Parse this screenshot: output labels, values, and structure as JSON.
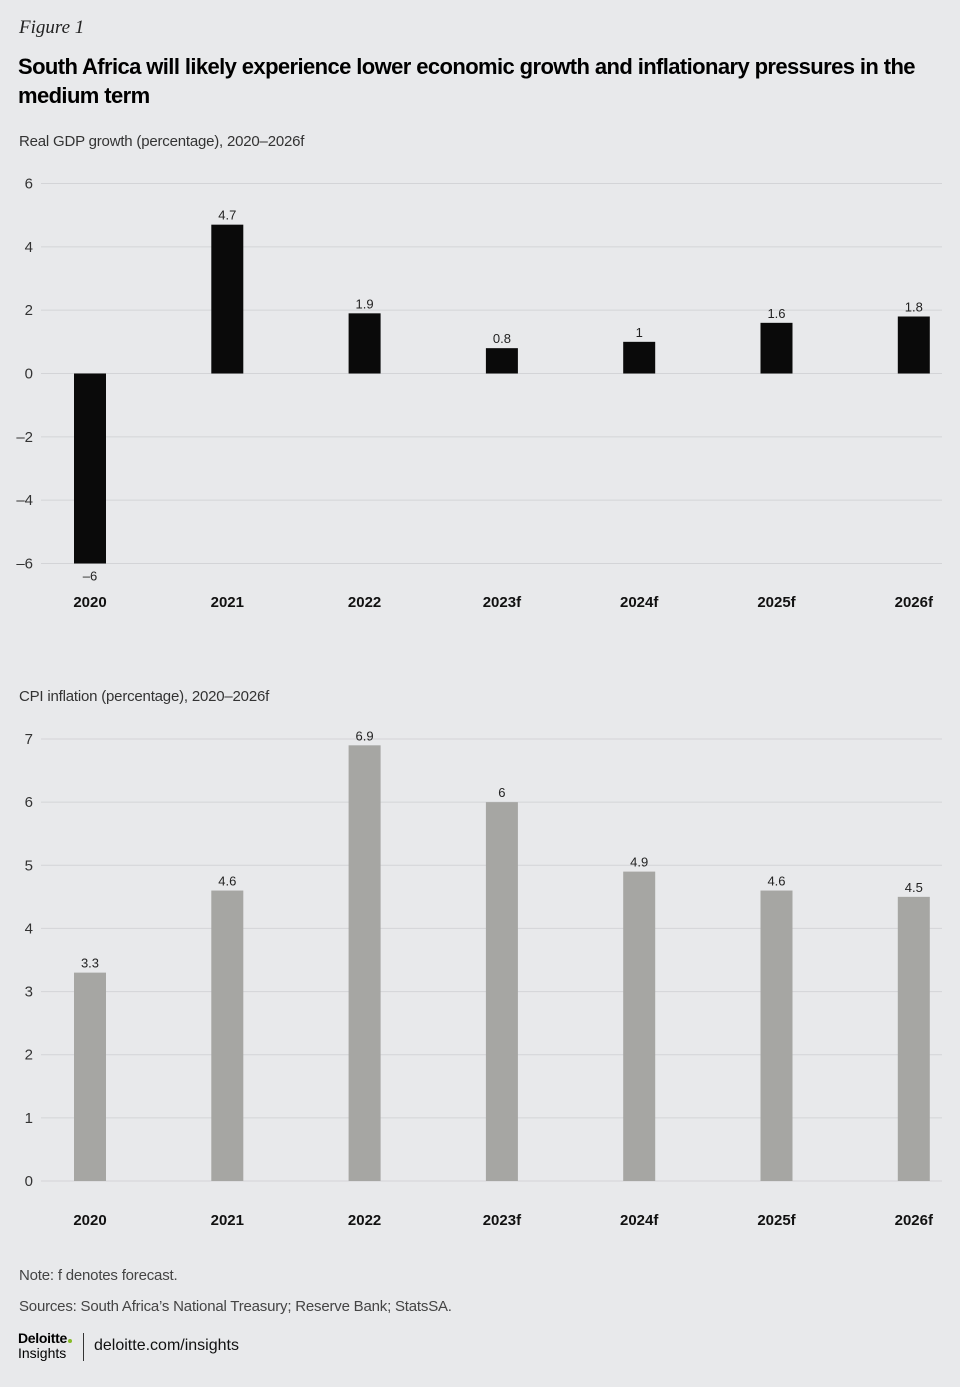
{
  "figure_label": "Figure 1",
  "title": "South Africa will likely experience lower economic growth and inflationary pressures in the medium term",
  "note": "Note: f denotes forecast.",
  "sources": "Sources: South Africa’s National Treasury; Reserve Bank; StatsSA.",
  "footer": {
    "logo_text": "Deloitte",
    "logo_sub": "Insights",
    "link": "deloitte.com/insights"
  },
  "colors": {
    "gdp_bar": "#0a0a0a",
    "cpi_bar": "#a6a6a3",
    "background": "#e8e9eb"
  },
  "chart_data": [
    {
      "id": "gdp",
      "type": "bar",
      "title": "Real GDP growth (percentage), 2020–2026f",
      "categories": [
        "2020",
        "2021",
        "2022",
        "2023f",
        "2024f",
        "2025f",
        "2026f"
      ],
      "values": [
        -6,
        4.7,
        1.9,
        0.8,
        1,
        1.6,
        1.8
      ],
      "value_labels": [
        "–6",
        "4.7",
        "1.9",
        "0.8",
        "1",
        "1.6",
        "1.8"
      ],
      "yticks": [
        6,
        4,
        2,
        0,
        -2,
        -4,
        -6
      ],
      "ytick_labels": [
        "6",
        "4",
        "2",
        "0",
        "–2",
        "–4",
        "–6"
      ],
      "ylim": [
        -6,
        6
      ],
      "grid": true
    },
    {
      "id": "cpi",
      "type": "bar",
      "title": "CPI inflation (percentage), 2020–2026f",
      "categories": [
        "2020",
        "2021",
        "2022",
        "2023f",
        "2024f",
        "2025f",
        "2026f"
      ],
      "values": [
        3.3,
        4.6,
        6.9,
        6,
        4.9,
        4.6,
        4.5
      ],
      "value_labels": [
        "3.3",
        "4.6",
        "6.9",
        "6",
        "4.9",
        "4.6",
        "4.5"
      ],
      "yticks": [
        7,
        6,
        5,
        4,
        3,
        2,
        1,
        0
      ],
      "ytick_labels": [
        "7",
        "6",
        "5",
        "4",
        "3",
        "2",
        "1",
        "0"
      ],
      "ylim": [
        0,
        7
      ],
      "grid": true
    }
  ]
}
